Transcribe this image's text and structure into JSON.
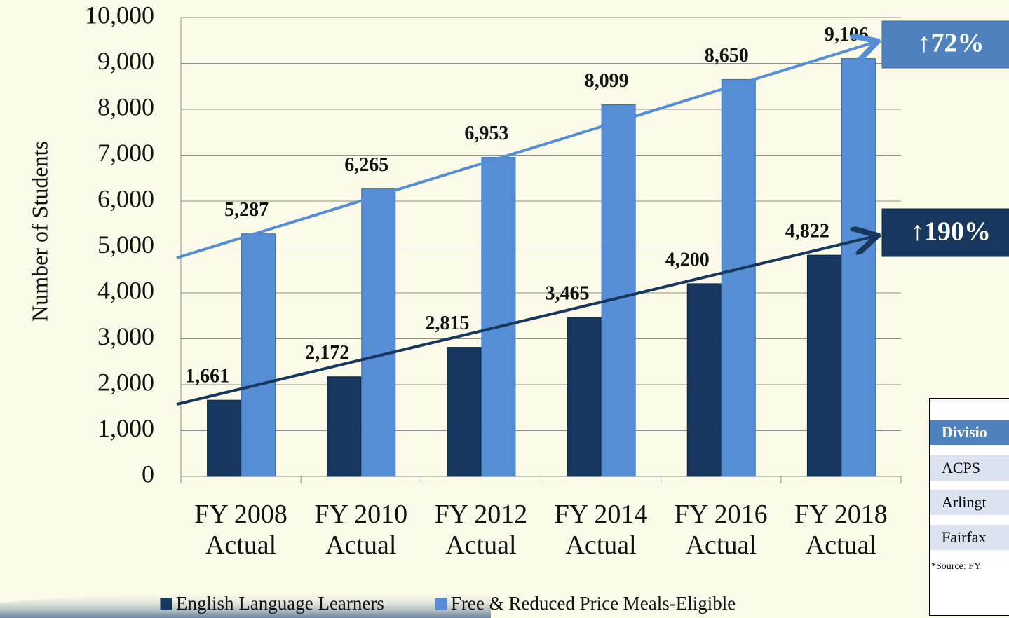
{
  "chart_data": {
    "type": "bar",
    "y_label": "Number of Students",
    "categories": [
      "FY 2008 Actual",
      "FY 2010 Actual",
      "FY 2012 Actual",
      "FY 2014 Actual",
      "FY 2016 Actual",
      "FY 2018 Actual"
    ],
    "series": [
      {
        "name": "English Language Learners",
        "color": "#17375e",
        "values": [
          1661,
          2172,
          2815,
          3465,
          4200,
          4822
        ],
        "value_labels": [
          "1,661",
          "2,172",
          "2,815",
          "3,465",
          "4,200",
          "4,822"
        ]
      },
      {
        "name": "Free & Reduced Price Meals-Eligible",
        "color": "#558ed5",
        "values": [
          5287,
          6265,
          6953,
          8099,
          8650,
          9106
        ],
        "value_labels": [
          "5,287",
          "6,265",
          "6,953",
          "8,099",
          "8,650",
          "9,106"
        ]
      }
    ],
    "ylim": [
      0,
      10000
    ],
    "yticks": [
      0,
      {
        "value": 1000,
        "label": "1,000"
      },
      {
        "value": 2000,
        "label": "2,000"
      },
      {
        "value": 3000,
        "label": "3,000"
      },
      {
        "value": 4000,
        "label": "4,000"
      },
      {
        "value": 5000,
        "label": "5,000"
      },
      {
        "value": 6000,
        "label": "6,000"
      },
      {
        "value": 7000,
        "label": "7,000"
      },
      {
        "value": 8000,
        "label": "8,000"
      },
      {
        "value": 9000,
        "label": "9,000"
      },
      {
        "value": 10000,
        "label": "10,000"
      }
    ],
    "grid": true,
    "legend": "bottom",
    "annotations": [
      "↑72%",
      "↑190%"
    ]
  },
  "table": {
    "header": "Divisio",
    "rows": [
      "ACPS",
      "Arlingt",
      "Fairfax"
    ],
    "source": "*Source: FY"
  }
}
